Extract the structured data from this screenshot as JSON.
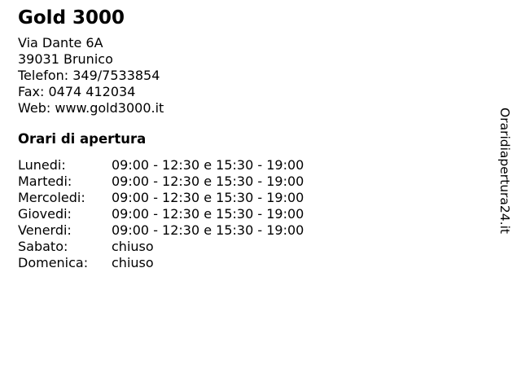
{
  "page": {
    "background_color": "#ffffff",
    "text_color": "#000000"
  },
  "business": {
    "name": "Gold 3000",
    "contact_lines": [
      "Via Dante 6A",
      "39031 Brunico",
      "Telefon: 349/7533854",
      "Fax: 0474 412034",
      "Web: www.gold3000.it"
    ]
  },
  "hours": {
    "heading": "Orari di apertura",
    "rows": [
      {
        "day": "Lunedi:",
        "time": "09:00 - 12:30 e 15:30 - 19:00"
      },
      {
        "day": "Martedi:",
        "time": "09:00 - 12:30 e 15:30 - 19:00"
      },
      {
        "day": "Mercoledi:",
        "time": "09:00 - 12:30 e 15:30 - 19:00"
      },
      {
        "day": "Giovedi:",
        "time": "09:00 - 12:30 e 15:30 - 19:00"
      },
      {
        "day": "Venerdi:",
        "time": "09:00 - 12:30 e 15:30 - 19:00"
      },
      {
        "day": "Sabato:",
        "time": "chiuso"
      },
      {
        "day": "Domenica:",
        "time": "chiuso"
      }
    ]
  },
  "watermark": {
    "text": "Oraridiapertura24.it"
  }
}
